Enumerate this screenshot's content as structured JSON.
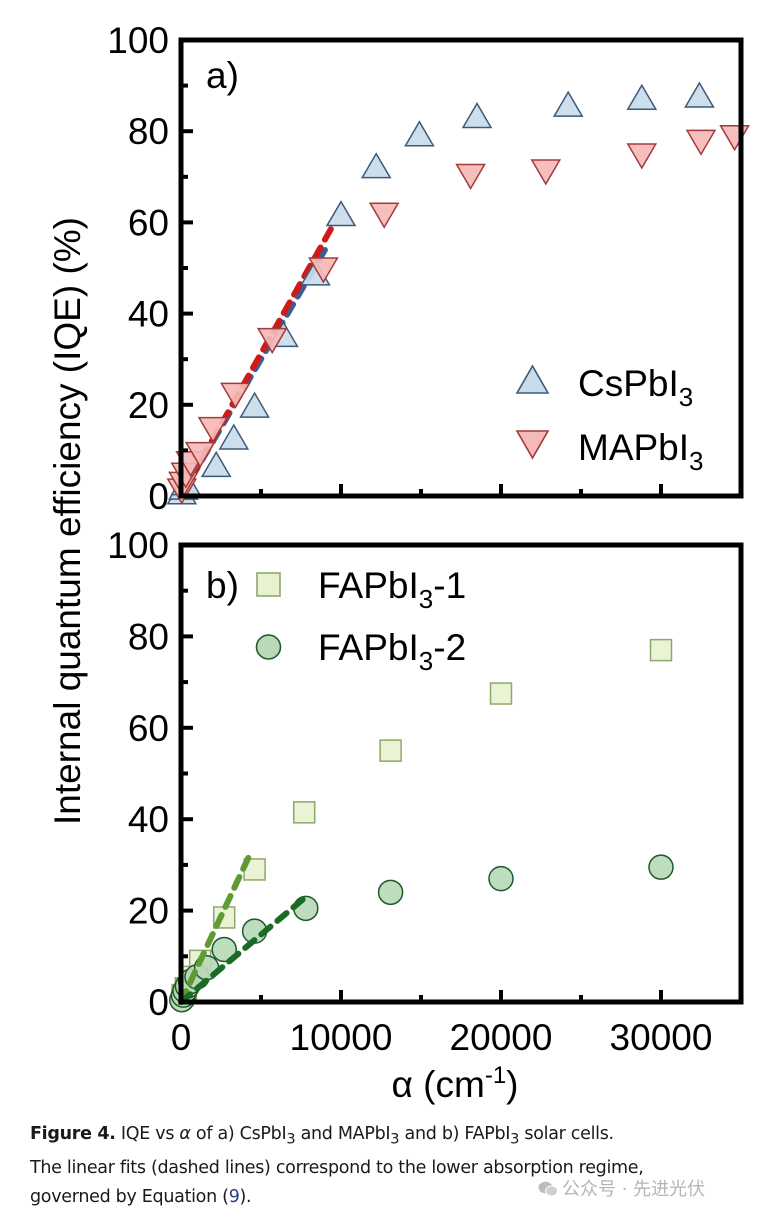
{
  "chart_data": [
    {
      "panel": "a)",
      "type": "scatter",
      "xlabel": "α (cm⁻¹)",
      "ylabel": "Internal quantum efficiency (IQE) (%)",
      "xlim": [
        0,
        35000
      ],
      "ylim": [
        0,
        100
      ],
      "x_ticks": [
        0,
        10000,
        20000,
        30000
      ],
      "y_ticks": [
        0,
        20,
        40,
        60,
        80,
        100
      ],
      "grid": false,
      "legend_position": "bottom-right",
      "series": [
        {
          "name": "CsPbI3",
          "marker": "triangle-up",
          "fill": "#c9dcec",
          "stroke": "#3d5a78",
          "points": [
            [
              50,
              0.5
            ],
            [
              150,
              1.5
            ],
            [
              300,
              2.5
            ],
            [
              2200,
              6.5
            ],
            [
              3300,
              12.5
            ],
            [
              4600,
              19.5
            ],
            [
              6400,
              35
            ],
            [
              8400,
              48.5
            ],
            [
              10000,
              61.5
            ],
            [
              12200,
              72
            ],
            [
              14900,
              79
            ],
            [
              18500,
              83
            ],
            [
              24200,
              85.5
            ],
            [
              28800,
              87
            ],
            [
              32400,
              87.5
            ]
          ]
        },
        {
          "name": "MAPbI3",
          "marker": "triangle-down",
          "fill": "#f6b8b8",
          "stroke": "#a33a3a",
          "points": [
            [
              50,
              1.5
            ],
            [
              150,
              3
            ],
            [
              300,
              5
            ],
            [
              600,
              7.5
            ],
            [
              1200,
              9.5
            ],
            [
              2000,
              15
            ],
            [
              3400,
              22.5
            ],
            [
              5700,
              34.5
            ],
            [
              8900,
              50
            ],
            [
              12700,
              62
            ],
            [
              18100,
              70.5
            ],
            [
              22800,
              71.5
            ],
            [
              28800,
              75
            ],
            [
              32500,
              78
            ],
            [
              34600,
              79
            ]
          ]
        }
      ],
      "fits": [
        {
          "series": "CsPbI3",
          "color": "#3a5f95",
          "x": [
            0,
            9000
          ],
          "y": [
            0,
            54
          ]
        },
        {
          "series": "MAPbI3",
          "color": "#d01a1a",
          "x": [
            0,
            9600
          ],
          "y": [
            0,
            60
          ]
        }
      ]
    },
    {
      "panel": "b)",
      "type": "scatter",
      "xlabel": "α (cm⁻¹)",
      "ylabel": "Internal quantum efficiency (IQE) (%)",
      "xlim": [
        0,
        35000
      ],
      "ylim": [
        0,
        100
      ],
      "x_ticks": [
        0,
        10000,
        20000,
        30000
      ],
      "y_ticks": [
        0,
        20,
        40,
        60,
        80,
        100
      ],
      "grid": false,
      "legend_position": "top-left",
      "series": [
        {
          "name": "FAPbI3-1",
          "marker": "square",
          "fill": "#e8f2d0",
          "stroke": "#8ea86a",
          "points": [
            [
              100,
              1.5
            ],
            [
              300,
              3
            ],
            [
              600,
              5.5
            ],
            [
              1200,
              9
            ],
            [
              2700,
              18.5
            ],
            [
              4600,
              29
            ],
            [
              7700,
              41.5
            ],
            [
              13100,
              55
            ],
            [
              20000,
              67.5
            ],
            [
              30000,
              77
            ]
          ]
        },
        {
          "name": "FAPbI3-2",
          "marker": "circle",
          "fill": "#b9d9b9",
          "stroke": "#1e5a2a",
          "points": [
            [
              50,
              0.5
            ],
            [
              150,
              1.5
            ],
            [
              250,
              2.5
            ],
            [
              400,
              3.5
            ],
            [
              600,
              4.5
            ],
            [
              1000,
              5.5
            ],
            [
              1600,
              7.5
            ],
            [
              2700,
              11.5
            ],
            [
              4600,
              15.5
            ],
            [
              7800,
              20.5
            ],
            [
              13100,
              24
            ],
            [
              20000,
              27
            ],
            [
              30000,
              29.5
            ]
          ]
        }
      ],
      "fits": [
        {
          "series": "FAPbI3-1",
          "color": "#5f9a32",
          "x": [
            0,
            4400
          ],
          "y": [
            0,
            33
          ]
        },
        {
          "series": "FAPbI3-2",
          "color": "#1a6b26",
          "x": [
            0,
            7800
          ],
          "y": [
            0,
            23
          ]
        }
      ]
    }
  ],
  "labels": {
    "panel_a": "a)",
    "panel_b": "b)",
    "y_axis_title": "Internal quantum efficiency (IQE) (%)",
    "x_axis_title_main": "α (cm",
    "x_axis_title_sup": "-1",
    "x_axis_title_end": ")",
    "x_tick_labels": [
      "0",
      "10000",
      "20000",
      "30000"
    ],
    "y_tick_labels": [
      "0",
      "20",
      "40",
      "60",
      "80",
      "100"
    ],
    "legend_a": [
      {
        "main": "CsPbI",
        "sub": "3",
        "suffix": ""
      },
      {
        "main": "MAPbI",
        "sub": "3",
        "suffix": ""
      }
    ],
    "legend_b": [
      {
        "main": "FAPbI",
        "sub": "3",
        "suffix": "-1"
      },
      {
        "main": "FAPbI",
        "sub": "3",
        "suffix": "-2"
      }
    ]
  },
  "caption": {
    "figure_label": "Figure 4.",
    "line1_a": " IQE vs ",
    "alpha": "α",
    "line1_b": " of a) CsPbI",
    "sub1": "3",
    "line1_c": " and MAPbI",
    "sub2": "3",
    "line1_d": " and b) FAPbI",
    "sub3": "3",
    "line1_e": " solar cells.",
    "line2": "The linear fits (dashed lines) correspond to the lower absorption regime,",
    "line3_a": "governed by Equation (",
    "eq_num": "9",
    "line3_b": ")."
  },
  "watermark": {
    "text": "公众号 · 先进光伏",
    "icon": "wechat-icon"
  }
}
